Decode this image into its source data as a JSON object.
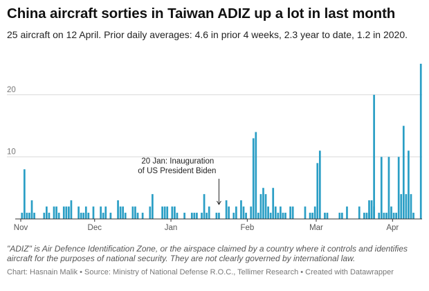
{
  "header": {
    "title": "China aircraft sorties in Taiwan ADIZ up a lot in last month",
    "subtitle": "25 aircraft on 12 April. Prior daily averages: 4.6 in prior 4 weeks, 2.3 year to date, 1.2 in 2020."
  },
  "footer": {
    "notes": "\"ADIZ\" is Air Defence Identification Zone, or the airspace claimed by a country where it controls and identifies aircraft for the purposes of national security. They are not clearly governed by international law.",
    "credit": "Chart: Hasnain Malik • Source: Ministry of National Defense R.O.C., Tellimer Research • Created with Datawrapper"
  },
  "colors": {
    "bar": "#2a9ec5",
    "grid": "#d9d9d9",
    "axis": "#333333"
  },
  "chart_data": {
    "type": "bar",
    "title": "China aircraft sorties in Taiwan ADIZ up a lot in last month",
    "xlabel": "",
    "ylabel": "",
    "x_start": "2020-11-01",
    "x_end": "2021-04-12",
    "ylim": [
      0,
      25
    ],
    "y_ticks": [
      10,
      20
    ],
    "grid": true,
    "x_ticks": [
      {
        "date": "2020-11-01",
        "label": "Nov"
      },
      {
        "date": "2020-12-01",
        "label": "Dec"
      },
      {
        "date": "2021-01-01",
        "label": "Jan"
      },
      {
        "date": "2021-02-01",
        "label": "Feb"
      },
      {
        "date": "2021-03-01",
        "label": "Mar"
      },
      {
        "date": "2021-04-01",
        "label": "Apr"
      }
    ],
    "bars": [
      {
        "date": "2020-11-01",
        "value": 1
      },
      {
        "date": "2020-11-02",
        "value": 8
      },
      {
        "date": "2020-11-03",
        "value": 1
      },
      {
        "date": "2020-11-04",
        "value": 1
      },
      {
        "date": "2020-11-05",
        "value": 3
      },
      {
        "date": "2020-11-06",
        "value": 1
      },
      {
        "date": "2020-11-10",
        "value": 1
      },
      {
        "date": "2020-11-11",
        "value": 2
      },
      {
        "date": "2020-11-12",
        "value": 1
      },
      {
        "date": "2020-11-14",
        "value": 2
      },
      {
        "date": "2020-11-15",
        "value": 2
      },
      {
        "date": "2020-11-16",
        "value": 1
      },
      {
        "date": "2020-11-18",
        "value": 2
      },
      {
        "date": "2020-11-19",
        "value": 2
      },
      {
        "date": "2020-11-20",
        "value": 2
      },
      {
        "date": "2020-11-21",
        "value": 3
      },
      {
        "date": "2020-11-24",
        "value": 2
      },
      {
        "date": "2020-11-25",
        "value": 1
      },
      {
        "date": "2020-11-26",
        "value": 1
      },
      {
        "date": "2020-11-27",
        "value": 2
      },
      {
        "date": "2020-11-28",
        "value": 1
      },
      {
        "date": "2020-11-30",
        "value": 2
      },
      {
        "date": "2020-12-03",
        "value": 2
      },
      {
        "date": "2020-12-04",
        "value": 1
      },
      {
        "date": "2020-12-05",
        "value": 2
      },
      {
        "date": "2020-12-07",
        "value": 1
      },
      {
        "date": "2020-12-10",
        "value": 3
      },
      {
        "date": "2020-12-11",
        "value": 2
      },
      {
        "date": "2020-12-12",
        "value": 2
      },
      {
        "date": "2020-12-13",
        "value": 1
      },
      {
        "date": "2020-12-16",
        "value": 2
      },
      {
        "date": "2020-12-17",
        "value": 2
      },
      {
        "date": "2020-12-18",
        "value": 1
      },
      {
        "date": "2020-12-20",
        "value": 1
      },
      {
        "date": "2020-12-23",
        "value": 2
      },
      {
        "date": "2020-12-24",
        "value": 4
      },
      {
        "date": "2020-12-28",
        "value": 2
      },
      {
        "date": "2020-12-29",
        "value": 2
      },
      {
        "date": "2020-12-30",
        "value": 2
      },
      {
        "date": "2021-01-01",
        "value": 2
      },
      {
        "date": "2021-01-02",
        "value": 2
      },
      {
        "date": "2021-01-03",
        "value": 1
      },
      {
        "date": "2021-01-06",
        "value": 1
      },
      {
        "date": "2021-01-09",
        "value": 1
      },
      {
        "date": "2021-01-10",
        "value": 1
      },
      {
        "date": "2021-01-11",
        "value": 1
      },
      {
        "date": "2021-01-13",
        "value": 1
      },
      {
        "date": "2021-01-14",
        "value": 4
      },
      {
        "date": "2021-01-15",
        "value": 1
      },
      {
        "date": "2021-01-16",
        "value": 2
      },
      {
        "date": "2021-01-19",
        "value": 1
      },
      {
        "date": "2021-01-20",
        "value": 1
      },
      {
        "date": "2021-01-23",
        "value": 3
      },
      {
        "date": "2021-01-24",
        "value": 2
      },
      {
        "date": "2021-01-26",
        "value": 1
      },
      {
        "date": "2021-01-27",
        "value": 2
      },
      {
        "date": "2021-01-29",
        "value": 3
      },
      {
        "date": "2021-01-30",
        "value": 2
      },
      {
        "date": "2021-01-31",
        "value": 1
      },
      {
        "date": "2021-02-02",
        "value": 2
      },
      {
        "date": "2021-02-03",
        "value": 13
      },
      {
        "date": "2021-02-04",
        "value": 14
      },
      {
        "date": "2021-02-05",
        "value": 1
      },
      {
        "date": "2021-02-06",
        "value": 4
      },
      {
        "date": "2021-02-07",
        "value": 5
      },
      {
        "date": "2021-02-08",
        "value": 4
      },
      {
        "date": "2021-02-09",
        "value": 2
      },
      {
        "date": "2021-02-10",
        "value": 1
      },
      {
        "date": "2021-02-11",
        "value": 5
      },
      {
        "date": "2021-02-12",
        "value": 2
      },
      {
        "date": "2021-02-13",
        "value": 1
      },
      {
        "date": "2021-02-14",
        "value": 2
      },
      {
        "date": "2021-02-15",
        "value": 1
      },
      {
        "date": "2021-02-16",
        "value": 1
      },
      {
        "date": "2021-02-18",
        "value": 2
      },
      {
        "date": "2021-02-19",
        "value": 2
      },
      {
        "date": "2021-02-24",
        "value": 2
      },
      {
        "date": "2021-02-26",
        "value": 1
      },
      {
        "date": "2021-02-27",
        "value": 1
      },
      {
        "date": "2021-02-28",
        "value": 2
      },
      {
        "date": "2021-03-01",
        "value": 9
      },
      {
        "date": "2021-03-02",
        "value": 11
      },
      {
        "date": "2021-03-04",
        "value": 1
      },
      {
        "date": "2021-03-05",
        "value": 1
      },
      {
        "date": "2021-03-10",
        "value": 1
      },
      {
        "date": "2021-03-11",
        "value": 1
      },
      {
        "date": "2021-03-13",
        "value": 2
      },
      {
        "date": "2021-03-18",
        "value": 2
      },
      {
        "date": "2021-03-20",
        "value": 1
      },
      {
        "date": "2021-03-21",
        "value": 1
      },
      {
        "date": "2021-03-22",
        "value": 1
      },
      {
        "date": "2021-03-24",
        "value": 2
      },
      {
        "date": "2021-03-26",
        "value": 1
      },
      {
        "date": "2021-03-29",
        "value": 1
      },
      {
        "date": "2021-03-30",
        "value": 1
      },
      {
        "date": "2021-03-31",
        "value": 2
      },
      {
        "date": "2021-03-22",
        "value": 3
      },
      {
        "date": "2021-03-23",
        "value": 3
      },
      {
        "date": "2021-03-24",
        "value": 20
      },
      {
        "date": "2021-03-27",
        "value": 10
      },
      {
        "date": "2021-03-28",
        "value": 1
      },
      {
        "date": "2021-03-30",
        "value": 10
      },
      {
        "date": "2021-04-01",
        "value": 1
      },
      {
        "date": "2021-04-02",
        "value": 1
      },
      {
        "date": "2021-04-03",
        "value": 10
      },
      {
        "date": "2021-04-04",
        "value": 4
      },
      {
        "date": "2021-04-05",
        "value": 15
      },
      {
        "date": "2021-04-06",
        "value": 4
      },
      {
        "date": "2021-04-07",
        "value": 11
      },
      {
        "date": "2021-04-08",
        "value": 4
      },
      {
        "date": "2021-04-09",
        "value": 1
      },
      {
        "date": "2021-04-12",
        "value": 25
      }
    ],
    "annotation": {
      "date": "2021-01-20",
      "value": 2,
      "text_lines": [
        "20 Jan: Inauguration",
        "of US President Biden"
      ]
    }
  }
}
